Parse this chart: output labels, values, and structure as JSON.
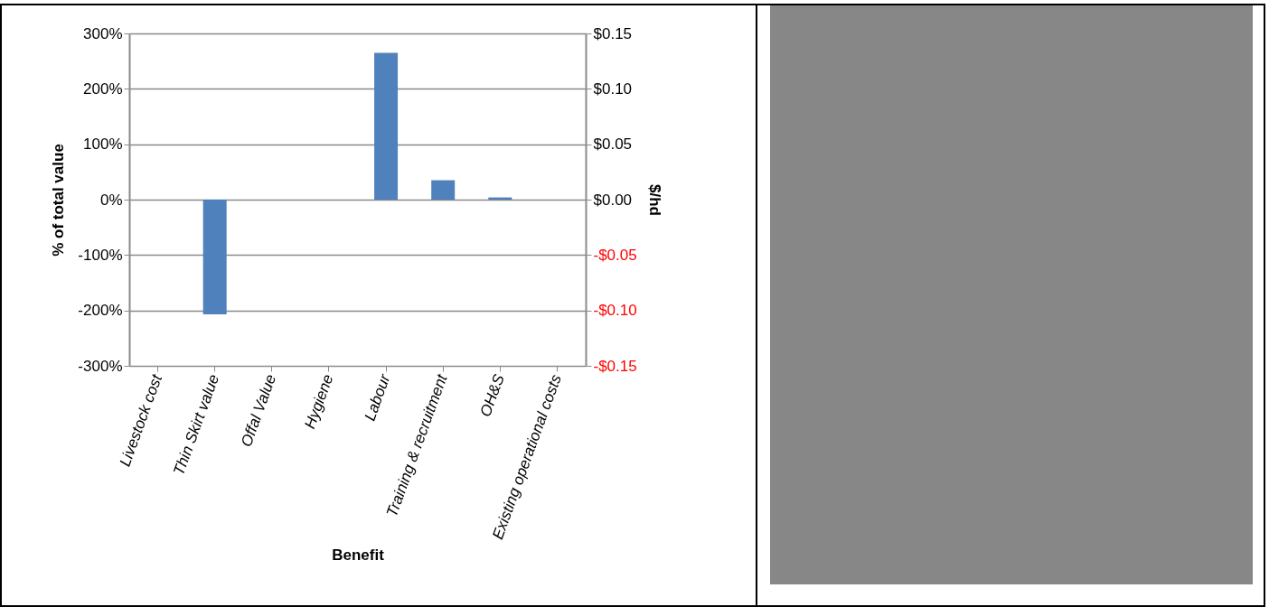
{
  "chart_data": {
    "type": "bar",
    "xlabel": "Benefit",
    "ylabel": "% of total value",
    "y2label": "$/hd",
    "categories": [
      "Livestock cost",
      "Thin Skirt value",
      "Offal Value",
      "Hygiene",
      "Labour",
      "Training & recruitment",
      "OH&S",
      "Existing operational costs"
    ],
    "series": [
      {
        "color": "#4f81bd",
        "values": [
          0,
          -207,
          0,
          0,
          265,
          35,
          4,
          0
        ]
      }
    ],
    "ylim": [
      -300,
      300
    ],
    "yticks": [
      {
        "value": -300,
        "label": "-300%"
      },
      {
        "value": -200,
        "label": "-200%"
      },
      {
        "value": -100,
        "label": "-100%"
      },
      {
        "value": 0,
        "label": "0%"
      },
      {
        "value": 100,
        "label": "100%"
      },
      {
        "value": 200,
        "label": "200%"
      },
      {
        "value": 300,
        "label": "300%"
      }
    ],
    "y2lim": [
      -0.15,
      0.15
    ],
    "y2ticks": [
      {
        "value": -0.15,
        "label": "-$0.15"
      },
      {
        "value": -0.1,
        "label": "-$0.10"
      },
      {
        "value": -0.05,
        "label": "-$0.05"
      },
      {
        "value": 0,
        "label": "$0.00"
      },
      {
        "value": 0.05,
        "label": "$0.05"
      },
      {
        "value": 0.1,
        "label": "$0.10"
      },
      {
        "value": 0.15,
        "label": "$0.15"
      }
    ],
    "grid": "y",
    "legend": false
  }
}
